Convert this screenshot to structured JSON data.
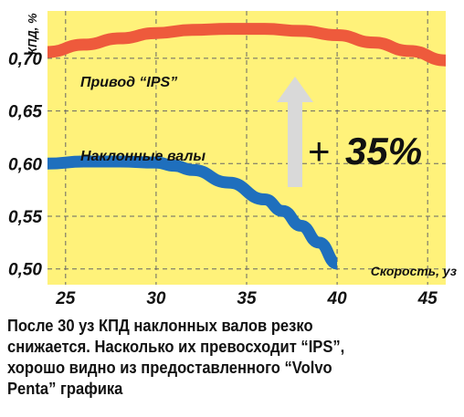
{
  "chart_data": {
    "type": "line",
    "title": "",
    "xlabel": "Скорость, уз",
    "ylabel": "КПД, %",
    "x_ticks": [
      "25",
      "30",
      "35",
      "40",
      "45"
    ],
    "y_ticks": [
      "0,50",
      "0,55",
      "0,60",
      "0,65",
      "0,70"
    ],
    "xlim": [
      24,
      46
    ],
    "ylim": [
      0.485,
      0.745
    ],
    "grid": true,
    "series": [
      {
        "name": "Привод “IPS”",
        "color": "#ee5a3c",
        "x": [
          24,
          26,
          28,
          30,
          32,
          34,
          36,
          38,
          40,
          42,
          44,
          46
        ],
        "y": [
          0.706,
          0.713,
          0.719,
          0.724,
          0.727,
          0.728,
          0.728,
          0.726,
          0.722,
          0.715,
          0.707,
          0.698
        ]
      },
      {
        "name": "Наклонные валы",
        "color": "#1f6fbd",
        "x": [
          24,
          26,
          28,
          30,
          31,
          32,
          34,
          36,
          37,
          38,
          39,
          40
        ],
        "y": [
          0.6,
          0.602,
          0.602,
          0.601,
          0.598,
          0.594,
          0.582,
          0.566,
          0.555,
          0.541,
          0.525,
          0.505
        ]
      }
    ],
    "annotation": {
      "plus": "+",
      "percent": "35%"
    },
    "colors": {
      "plot_background": "#fff27a",
      "grid": "#666666",
      "arrow": "#d9d9d9"
    }
  },
  "caption": [
    "После 30 уз КПД наклонных валов резко",
    "снижается. Насколько их превосходит “IPS”,",
    "хорошо видно из предоставленного “Volvo",
    "Penta” графика"
  ]
}
